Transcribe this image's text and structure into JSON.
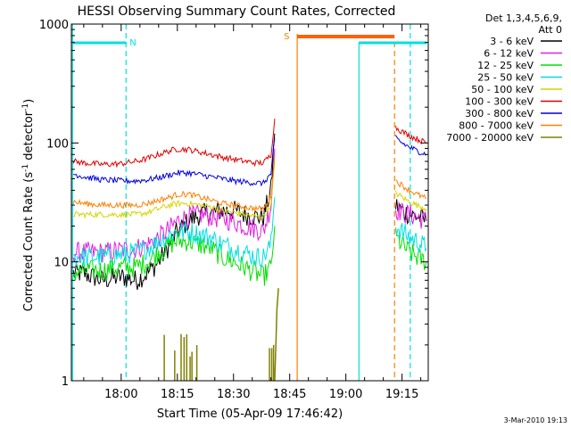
{
  "chart_data": {
    "type": "line",
    "title": "HESSI Observing Summary Count Rates, Corrected",
    "xlabel": "Start Time (05-Apr-09 17:46:42)",
    "ylabel": "Corrected Count Rate (s⁻¹ detector⁻¹)",
    "footer": "3-Mar-2010 19:13",
    "x_unit": "minutes of day",
    "x_range": [
      1066.7,
      1162
    ],
    "ylim": [
      1,
      1000
    ],
    "yscale": "log",
    "x_ticks": [
      {
        "value": 1080,
        "label": "18:00"
      },
      {
        "value": 1095,
        "label": "18:15"
      },
      {
        "value": 1110,
        "label": "18:30"
      },
      {
        "value": 1125,
        "label": "18:45"
      },
      {
        "value": 1140,
        "label": "19:00"
      },
      {
        "value": 1155,
        "label": "19:15"
      }
    ],
    "y_ticks": [
      {
        "value": 1,
        "label": "1"
      },
      {
        "value": 10,
        "label": "10"
      },
      {
        "value": 100,
        "label": "100"
      },
      {
        "value": 1000,
        "label": "1000"
      }
    ],
    "legend": {
      "header1": "Det 1,3,4,5,6,9,",
      "header2": "Att 0",
      "placement": "right"
    },
    "night_lines": [
      1067.0,
      1081.3,
      1157.2
    ],
    "saa_lines": [
      1153.0
    ],
    "annotations": {
      "night_label": "N",
      "saa_label": "S",
      "night_bars": [
        [
          1067.0,
          1081.3
        ],
        [
          1143.5,
          1161.6
        ]
      ],
      "saa_bar": [
        1127.0,
        1153.0
      ],
      "night_box": [
        1143.5,
        1161.6
      ],
      "saa_box_left": 1127.0
    },
    "series": [
      {
        "name": "3 - 6 keV",
        "color": "#000000",
        "segments": [
          {
            "x": [
              1067.2,
              1070,
              1075,
              1080,
              1084,
              1087,
              1090,
              1093,
              1095,
              1098,
              1101,
              1104,
              1107,
              1110,
              1113,
              1116,
              1118,
              1120,
              1121
            ],
            "y": [
              8,
              8,
              7,
              7.5,
              7,
              8,
              10,
              14,
              18,
              22,
              25,
              26,
              27,
              27,
              25,
              24,
              24,
              40,
              120
            ]
          },
          {
            "x": [
              1153.3,
              1155,
              1157,
              1159,
              1161.5
            ],
            "y": [
              30,
              27,
              25,
              24,
              22
            ]
          }
        ]
      },
      {
        "name": "6 - 12 keV",
        "color": "#e020e0",
        "segments": [
          {
            "x": [
              1067.2,
              1070,
              1075,
              1080,
              1084,
              1087,
              1090,
              1093,
              1095,
              1098,
              1101,
              1104,
              1107,
              1110,
              1113,
              1116,
              1118,
              1120,
              1121
            ],
            "y": [
              12,
              12,
              12,
              12.5,
              13,
              14,
              16,
              19,
              22,
              24,
              25,
              24,
              23,
              22,
              20,
              19,
              18,
              30,
              90
            ]
          },
          {
            "x": [
              1153.3,
              1155,
              1157,
              1159,
              1161.5
            ],
            "y": [
              28,
              26,
              25,
              24,
              22
            ]
          }
        ]
      },
      {
        "name": "12 - 25 keV",
        "color": "#00e000",
        "segments": [
          {
            "x": [
              1067.2,
              1070,
              1075,
              1080,
              1084,
              1087,
              1090,
              1093,
              1095,
              1098,
              1101,
              1104,
              1107,
              1110,
              1113,
              1116,
              1118,
              1120,
              1121
            ],
            "y": [
              8,
              8.5,
              8.5,
              9,
              9,
              10,
              12,
              14,
              15,
              15,
              14,
              13,
              11,
              10,
              9,
              8,
              7.5,
              9,
              20
            ]
          },
          {
            "x": [
              1153.3,
              1155,
              1157,
              1159,
              1161.5
            ],
            "y": [
              16,
              14,
              12,
              11,
              10
            ]
          }
        ]
      },
      {
        "name": "25 - 50 keV",
        "color": "#00e0e0",
        "segments": [
          {
            "x": [
              1067.2,
              1070,
              1075,
              1080,
              1084,
              1087,
              1090,
              1093,
              1095,
              1098,
              1101,
              1104,
              1107,
              1110,
              1113,
              1116,
              1118,
              1120,
              1121
            ],
            "y": [
              11,
              11,
              11,
              11.5,
              12,
              13,
              15,
              17,
              18,
              18,
              17,
              16,
              14,
              13,
              12,
              11,
              11,
              14,
              35
            ]
          },
          {
            "x": [
              1153.3,
              1155,
              1157,
              1159,
              1161.5
            ],
            "y": [
              20,
              18,
              16,
              15,
              13
            ]
          }
        ]
      },
      {
        "name": "50 - 100 keV",
        "color": "#d4d400",
        "segments": [
          {
            "x": [
              1067.2,
              1070,
              1075,
              1080,
              1084,
              1087,
              1090,
              1093,
              1095,
              1098,
              1101,
              1104,
              1107,
              1110,
              1113,
              1116,
              1118,
              1120,
              1121
            ],
            "y": [
              25,
              25,
              25,
              25,
              25,
              26,
              28,
              30,
              31,
              31,
              30,
              29,
              27,
              26,
              25,
              24,
              24,
              30,
              70
            ]
          },
          {
            "x": [
              1153.3,
              1155,
              1157,
              1159,
              1161.5
            ],
            "y": [
              38,
              35,
              32,
              30,
              28
            ]
          }
        ]
      },
      {
        "name": "100 - 300 keV",
        "color": "#e00000",
        "segments": [
          {
            "x": [
              1067.2,
              1070,
              1075,
              1080,
              1084,
              1087,
              1090,
              1093,
              1095,
              1098,
              1101,
              1104,
              1107,
              1110,
              1113,
              1116,
              1118,
              1120,
              1121
            ],
            "y": [
              70,
              68,
              66,
              67,
              70,
              74,
              80,
              86,
              89,
              88,
              84,
              80,
              76,
              73,
              70,
              68,
              68,
              80,
              160
            ]
          },
          {
            "x": [
              1153.3,
              1155,
              1157,
              1159,
              1161.5
            ],
            "y": [
              135,
              125,
              115,
              108,
              100
            ]
          }
        ]
      },
      {
        "name": "300 - 800 keV",
        "color": "#0000e0",
        "segments": [
          {
            "x": [
              1067.2,
              1070,
              1075,
              1080,
              1084,
              1087,
              1090,
              1093,
              1095,
              1098,
              1101,
              1104,
              1107,
              1110,
              1113,
              1116,
              1118,
              1120,
              1121
            ],
            "y": [
              55,
              52,
              49,
              48,
              48,
              49,
              51,
              54,
              56,
              56,
              54,
              52,
              50,
              48,
              47,
              46,
              46,
              55,
              110
            ]
          },
          {
            "x": [
              1153.3,
              1155,
              1157,
              1159,
              1161.5
            ],
            "y": [
              110,
              100,
              92,
              86,
              80
            ]
          }
        ]
      },
      {
        "name": "800 - 7000 keV",
        "color": "#ff8000",
        "segments": [
          {
            "x": [
              1067.2,
              1070,
              1075,
              1080,
              1084,
              1087,
              1090,
              1093,
              1095,
              1098,
              1101,
              1104,
              1107,
              1110,
              1113,
              1116,
              1118,
              1120,
              1121
            ],
            "y": [
              32,
              31,
              30,
              30,
              30,
              31,
              33,
              35,
              37,
              37,
              35,
              33,
              31,
              30,
              29,
              28,
              28,
              35,
              80
            ]
          },
          {
            "x": [
              1153.3,
              1155,
              1157,
              1159,
              1161.5
            ],
            "y": [
              48,
              44,
              40,
              37,
              34
            ]
          }
        ]
      },
      {
        "name": "7000 - 20000 keV",
        "color": "#808000",
        "segments": [],
        "spikes": [
          {
            "x": 1091.5,
            "y": 2
          },
          {
            "x": 1094.3,
            "y": 2
          },
          {
            "x": 1096.0,
            "y": 2
          },
          {
            "x": 1096.8,
            "y": 2
          },
          {
            "x": 1097.5,
            "y": 2
          },
          {
            "x": 1098.4,
            "y": 2
          },
          {
            "x": 1098.9,
            "y": 2
          },
          {
            "x": 1100.2,
            "y": 2
          },
          {
            "x": 1119.6,
            "y": 2
          },
          {
            "x": 1120.2,
            "y": 2
          },
          {
            "x": 1120.7,
            "y": 2
          }
        ],
        "rise": {
          "x": [
            1121.0,
            1121.3,
            1121.6,
            1122.0
          ],
          "y": [
            1,
            2,
            4,
            6
          ]
        }
      }
    ]
  }
}
